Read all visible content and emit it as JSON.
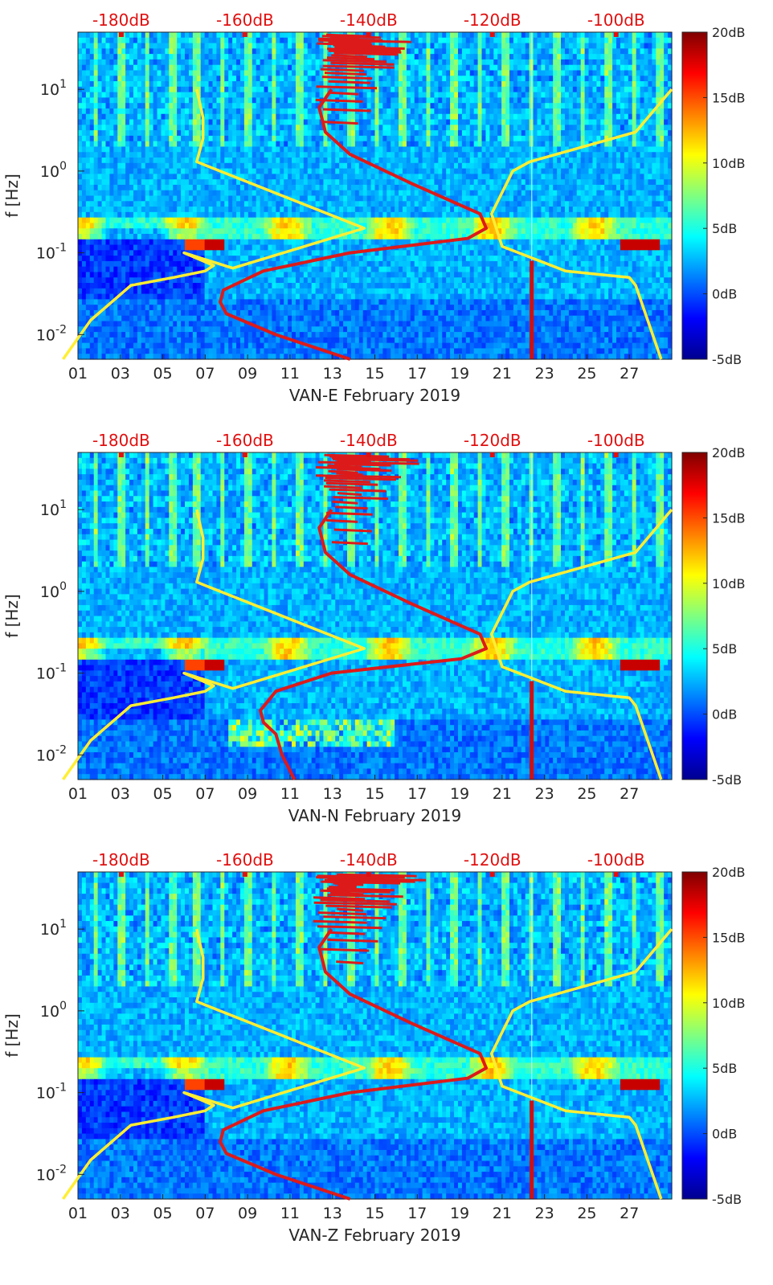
{
  "colors": {
    "model_curve": "#ffee33",
    "noise_curve": "#dd1a1a",
    "top_axis_text": "#e01010",
    "axis": "#262626"
  },
  "chart_data": [
    {
      "type": "heatmap",
      "xlabel": "VAN-E February 2019",
      "ylabel": "f [Hz]",
      "x_ticks": [
        "01",
        "03",
        "05",
        "07",
        "09",
        "11",
        "13",
        "15",
        "17",
        "19",
        "21",
        "23",
        "25",
        "27"
      ],
      "top_ticks": [
        "-180dB",
        "-160dB",
        "-140dB",
        "-120dB",
        "-100dB"
      ],
      "y_ticks": [
        {
          "base": "10",
          "exp": "1",
          "value": 10
        },
        {
          "base": "10",
          "exp": "0",
          "value": 1
        },
        {
          "base": "10",
          "exp": "-1",
          "value": 0.1
        },
        {
          "base": "10",
          "exp": "-2",
          "value": 0.01
        }
      ],
      "colorbar_ticks": [
        "20dB",
        "15dB",
        "10dB",
        "5dB",
        "0dB",
        "-5dB"
      ],
      "colorbar_range": [
        -5,
        20
      ],
      "xlim": [
        1,
        29
      ],
      "ylim_hz": [
        0.005,
        50
      ],
      "yscale": "log",
      "top_xlim_db": [
        -187,
        -91
      ],
      "series": [
        {
          "kind": "model",
          "x_day": [
            0.3,
            1.6,
            3.5,
            5.5,
            7.0,
            7.4,
            6.0,
            8.3,
            14.5,
            6.6,
            6.9,
            6.9,
            6.6
          ],
          "y_hz": [
            0.005,
            0.015,
            0.04,
            0.05,
            0.06,
            0.07,
            0.1,
            0.065,
            0.2,
            1.3,
            2.5,
            4.5,
            10
          ]
        },
        {
          "kind": "model",
          "x_day": [
            28.5,
            27.3,
            27.0,
            24.0,
            21.0,
            20.5,
            21.5,
            22.3,
            27.3,
            29.0
          ],
          "y_hz": [
            0.005,
            0.04,
            0.05,
            0.06,
            0.12,
            0.3,
            1.0,
            1.3,
            3.0,
            10
          ]
        },
        {
          "kind": "noise_db",
          "x_db": [
            -143,
            -155,
            -163,
            -164,
            -163.5,
            -157,
            -143,
            -124,
            -121,
            -122,
            -133,
            -143,
            -147,
            -148,
            -146
          ],
          "y_hz": [
            0.005,
            0.01,
            0.018,
            0.025,
            0.035,
            0.06,
            0.1,
            0.15,
            0.2,
            0.3,
            0.7,
            1.6,
            3.0,
            6.0,
            10.0
          ]
        }
      ]
    },
    {
      "type": "heatmap",
      "xlabel": "VAN-N February 2019",
      "ylabel": "f [Hz]",
      "x_ticks": [
        "01",
        "03",
        "05",
        "07",
        "09",
        "11",
        "13",
        "15",
        "17",
        "19",
        "21",
        "23",
        "25",
        "27"
      ],
      "top_ticks": [
        "-180dB",
        "-160dB",
        "-140dB",
        "-120dB",
        "-100dB"
      ],
      "y_ticks": [
        {
          "base": "10",
          "exp": "1",
          "value": 10
        },
        {
          "base": "10",
          "exp": "0",
          "value": 1
        },
        {
          "base": "10",
          "exp": "-1",
          "value": 0.1
        },
        {
          "base": "10",
          "exp": "-2",
          "value": 0.01
        }
      ],
      "colorbar_ticks": [
        "20dB",
        "15dB",
        "10dB",
        "5dB",
        "0dB",
        "-5dB"
      ],
      "colorbar_range": [
        -5,
        20
      ],
      "xlim": [
        1,
        29
      ],
      "ylim_hz": [
        0.005,
        50
      ],
      "yscale": "log",
      "top_xlim_db": [
        -187,
        -91
      ],
      "series": [
        {
          "kind": "model",
          "x_day": [
            0.3,
            1.6,
            3.5,
            5.5,
            7.0,
            7.4,
            6.0,
            8.3,
            14.5,
            6.6,
            6.9,
            6.9,
            6.6
          ],
          "y_hz": [
            0.005,
            0.015,
            0.04,
            0.05,
            0.06,
            0.07,
            0.1,
            0.065,
            0.2,
            1.3,
            2.5,
            4.5,
            10
          ]
        },
        {
          "kind": "model",
          "x_day": [
            28.5,
            27.3,
            27.0,
            24.0,
            21.0,
            20.5,
            21.5,
            22.3,
            27.3,
            29.0
          ],
          "y_hz": [
            0.005,
            0.04,
            0.05,
            0.06,
            0.12,
            0.3,
            1.0,
            1.3,
            3.0,
            10
          ]
        },
        {
          "kind": "noise_db",
          "x_db": [
            -152,
            -154,
            -155,
            -157,
            -157.5,
            -155,
            -146,
            -125,
            -121,
            -122,
            -133,
            -143,
            -147,
            -148,
            -146
          ],
          "y_hz": [
            0.005,
            0.01,
            0.018,
            0.025,
            0.035,
            0.06,
            0.1,
            0.15,
            0.2,
            0.3,
            0.7,
            1.6,
            3.0,
            6.0,
            10.0
          ]
        }
      ]
    },
    {
      "type": "heatmap",
      "xlabel": "VAN-Z February 2019",
      "ylabel": "f [Hz]",
      "x_ticks": [
        "01",
        "03",
        "05",
        "07",
        "09",
        "11",
        "13",
        "15",
        "17",
        "19",
        "21",
        "23",
        "25",
        "27"
      ],
      "top_ticks": [
        "-180dB",
        "-160dB",
        "-140dB",
        "-120dB",
        "-100dB"
      ],
      "y_ticks": [
        {
          "base": "10",
          "exp": "1",
          "value": 10
        },
        {
          "base": "10",
          "exp": "0",
          "value": 1
        },
        {
          "base": "10",
          "exp": "-1",
          "value": 0.1
        },
        {
          "base": "10",
          "exp": "-2",
          "value": 0.01
        }
      ],
      "colorbar_ticks": [
        "20dB",
        "15dB",
        "10dB",
        "5dB",
        "0dB",
        "-5dB"
      ],
      "colorbar_range": [
        -5,
        20
      ],
      "xlim": [
        1,
        29
      ],
      "ylim_hz": [
        0.005,
        50
      ],
      "yscale": "log",
      "top_xlim_db": [
        -187,
        -91
      ],
      "series": [
        {
          "kind": "model",
          "x_day": [
            0.3,
            1.6,
            3.5,
            5.5,
            7.0,
            7.4,
            6.0,
            8.3,
            14.5,
            6.6,
            6.9,
            6.9,
            6.6
          ],
          "y_hz": [
            0.005,
            0.015,
            0.04,
            0.05,
            0.06,
            0.07,
            0.1,
            0.065,
            0.2,
            1.3,
            2.5,
            4.5,
            10
          ]
        },
        {
          "kind": "model",
          "x_day": [
            28.5,
            27.3,
            27.0,
            24.0,
            21.0,
            20.5,
            21.5,
            22.3,
            27.3,
            29.0
          ],
          "y_hz": [
            0.005,
            0.04,
            0.05,
            0.06,
            0.12,
            0.3,
            1.0,
            1.3,
            3.0,
            10
          ]
        },
        {
          "kind": "noise_db",
          "x_db": [
            -143,
            -155,
            -163,
            -164,
            -163.5,
            -157,
            -143,
            -124,
            -121,
            -122,
            -133,
            -143,
            -147,
            -148,
            -146
          ],
          "y_hz": [
            0.005,
            0.01,
            0.018,
            0.025,
            0.035,
            0.06,
            0.1,
            0.15,
            0.2,
            0.3,
            0.7,
            1.6,
            3.0,
            6.0,
            10.0
          ]
        }
      ]
    }
  ]
}
